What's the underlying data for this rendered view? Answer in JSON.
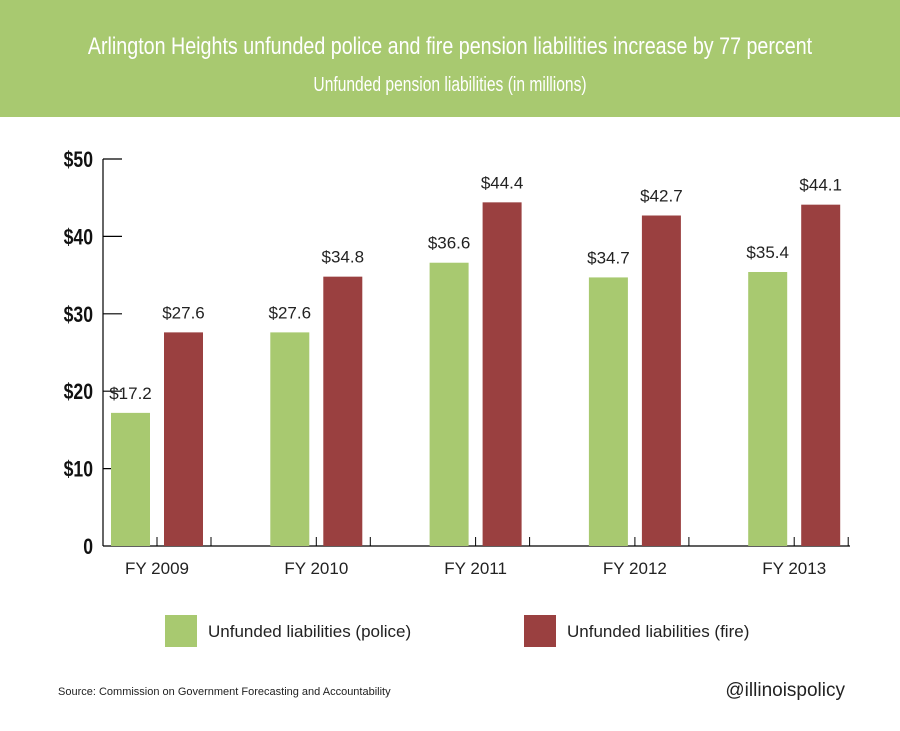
{
  "chart_data": {
    "type": "bar",
    "title": "Arlington Heights unfunded police and fire pension liabilities increase by 77 percent",
    "subtitle": "Unfunded pension liabilities (in millions)",
    "categories": [
      "FY 2009",
      "FY 2010",
      "FY 2011",
      "FY 2012",
      "FY 2013"
    ],
    "series": [
      {
        "name": "Unfunded liabilities (police)",
        "color": "#a8c970",
        "values": [
          17.2,
          27.6,
          36.6,
          34.7,
          35.4
        ],
        "labels": [
          "$17.2",
          "$27.6",
          "$36.6",
          "$34.7",
          "$35.4"
        ]
      },
      {
        "name": "Unfunded liabilities (fire)",
        "color": "#9a4040",
        "values": [
          27.6,
          34.8,
          44.4,
          42.7,
          44.1
        ],
        "labels": [
          "$27.6",
          "$34.8",
          "$44.4",
          "$42.7",
          "$44.1"
        ]
      }
    ],
    "yticks": [
      0,
      10,
      20,
      30,
      40,
      50
    ],
    "ytick_labels": [
      "0",
      "$10",
      "$20",
      "$30",
      "$40",
      "$50"
    ],
    "ylim": [
      0,
      50
    ],
    "xlabel": "",
    "ylabel": "",
    "grid": false,
    "legend_position": "bottom"
  },
  "footer": {
    "source": "Source: Commission on Government Forecasting and Accountability",
    "handle": "@illinoispolicy"
  }
}
